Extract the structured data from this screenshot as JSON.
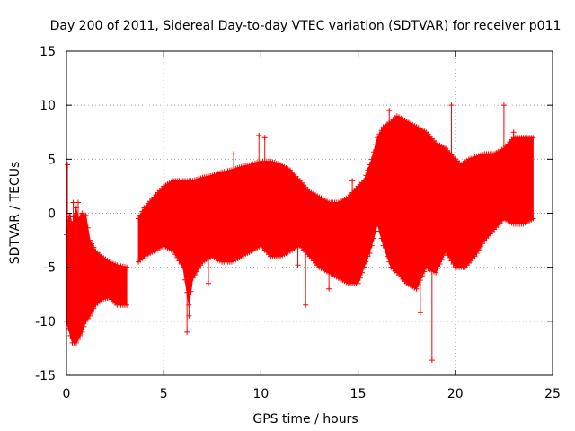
{
  "chart_data": {
    "type": "scatter",
    "title": "Day 200 of 2011, Sidereal Day-to-day VTEC variation (SDTVAR) for receiver p011",
    "xlabel": "GPS time / hours",
    "ylabel": "SDTVAR / TECUs",
    "xlim": [
      0,
      25
    ],
    "ylim": [
      -15,
      15
    ],
    "xticks": [
      "0",
      "5",
      "10",
      "15",
      "20",
      "25"
    ],
    "yticks": [
      "-15",
      "-10",
      "-5",
      "0",
      "5",
      "10",
      "15"
    ],
    "grid": true,
    "marker": "+",
    "color": "#ff0000",
    "series": [
      {
        "name": "SDTVAR",
        "band_upper": [
          [
            0.0,
            -2.0
          ],
          [
            0.15,
            0.0
          ],
          [
            0.3,
            -1.0
          ],
          [
            0.5,
            0.5
          ],
          [
            0.6,
            -0.5
          ],
          [
            0.8,
            0.0
          ],
          [
            1.0,
            -0.2
          ],
          [
            1.2,
            -2.5
          ],
          [
            1.5,
            -3.5
          ],
          [
            1.8,
            -4.0
          ],
          [
            2.2,
            -4.5
          ],
          [
            2.6,
            -4.8
          ],
          [
            3.1,
            -5.0
          ],
          [
            3.7,
            -0.5
          ],
          [
            4.0,
            0.5
          ],
          [
            4.5,
            1.5
          ],
          [
            5.0,
            2.5
          ],
          [
            5.5,
            3.0
          ],
          [
            6.0,
            3.0
          ],
          [
            6.5,
            3.0
          ],
          [
            7.0,
            3.3
          ],
          [
            7.5,
            3.5
          ],
          [
            8.0,
            3.8
          ],
          [
            8.5,
            4.0
          ],
          [
            9.0,
            4.3
          ],
          [
            9.5,
            4.5
          ],
          [
            10.0,
            4.8
          ],
          [
            10.5,
            4.8
          ],
          [
            11.0,
            4.5
          ],
          [
            11.5,
            4.0
          ],
          [
            12.0,
            3.0
          ],
          [
            12.5,
            2.0
          ],
          [
            13.0,
            1.5
          ],
          [
            13.5,
            1.0
          ],
          [
            14.0,
            1.0
          ],
          [
            14.5,
            1.5
          ],
          [
            15.0,
            2.5
          ],
          [
            15.3,
            3.0
          ],
          [
            15.7,
            5.0
          ],
          [
            16.0,
            7.0
          ],
          [
            16.3,
            8.0
          ],
          [
            16.7,
            8.5
          ],
          [
            17.0,
            9.0
          ],
          [
            17.5,
            8.5
          ],
          [
            18.0,
            8.0
          ],
          [
            18.5,
            7.5
          ],
          [
            19.0,
            6.5
          ],
          [
            19.5,
            6.0
          ],
          [
            20.0,
            5.0
          ],
          [
            20.3,
            4.5
          ],
          [
            20.7,
            5.0
          ],
          [
            21.0,
            5.2
          ],
          [
            21.5,
            5.5
          ],
          [
            22.0,
            5.5
          ],
          [
            22.5,
            6.0
          ],
          [
            23.0,
            7.0
          ],
          [
            23.5,
            7.0
          ],
          [
            24.0,
            7.0
          ]
        ],
        "band_lower": [
          [
            0.0,
            -10.0
          ],
          [
            0.3,
            -12.0
          ],
          [
            0.5,
            -12.0
          ],
          [
            0.8,
            -11.0
          ],
          [
            1.0,
            -10.0
          ],
          [
            1.2,
            -9.5
          ],
          [
            1.5,
            -8.5
          ],
          [
            1.8,
            -8.0
          ],
          [
            2.2,
            -7.8
          ],
          [
            2.6,
            -8.5
          ],
          [
            3.1,
            -8.5
          ],
          [
            3.7,
            -4.5
          ],
          [
            4.0,
            -4.0
          ],
          [
            4.5,
            -3.5
          ],
          [
            5.0,
            -3.0
          ],
          [
            5.5,
            -3.5
          ],
          [
            6.0,
            -5.0
          ],
          [
            6.3,
            -8.5
          ],
          [
            6.5,
            -6.0
          ],
          [
            7.0,
            -4.5
          ],
          [
            7.5,
            -4.0
          ],
          [
            8.0,
            -4.5
          ],
          [
            8.5,
            -4.5
          ],
          [
            9.0,
            -4.0
          ],
          [
            9.5,
            -3.5
          ],
          [
            10.0,
            -3.0
          ],
          [
            10.5,
            -4.0
          ],
          [
            11.0,
            -4.0
          ],
          [
            11.5,
            -3.5
          ],
          [
            12.0,
            -3.0
          ],
          [
            12.5,
            -4.0
          ],
          [
            13.0,
            -5.0
          ],
          [
            13.5,
            -5.5
          ],
          [
            14.0,
            -6.0
          ],
          [
            14.5,
            -6.5
          ],
          [
            15.0,
            -6.5
          ],
          [
            15.3,
            -5.0
          ],
          [
            15.7,
            -3.0
          ],
          [
            16.0,
            -1.0
          ],
          [
            16.3,
            -3.0
          ],
          [
            16.7,
            -5.0
          ],
          [
            17.0,
            -5.5
          ],
          [
            17.5,
            -6.5
          ],
          [
            18.0,
            -7.0
          ],
          [
            18.5,
            -5.0
          ],
          [
            19.0,
            -5.5
          ],
          [
            19.5,
            -3.5
          ],
          [
            20.0,
            -5.0
          ],
          [
            20.5,
            -5.0
          ],
          [
            21.0,
            -4.0
          ],
          [
            21.5,
            -2.5
          ],
          [
            22.0,
            -1.5
          ],
          [
            22.5,
            -0.5
          ],
          [
            23.0,
            -1.0
          ],
          [
            23.5,
            -1.0
          ],
          [
            24.0,
            -0.5
          ]
        ],
        "outliers": [
          [
            0.05,
            4.5
          ],
          [
            0.35,
            1.0
          ],
          [
            0.6,
            1.0
          ],
          [
            6.2,
            -11.0
          ],
          [
            6.3,
            -9.5
          ],
          [
            7.3,
            -6.5
          ],
          [
            8.6,
            5.5
          ],
          [
            9.9,
            7.2
          ],
          [
            10.2,
            7.0
          ],
          [
            11.9,
            -4.8
          ],
          [
            12.3,
            -8.5
          ],
          [
            13.5,
            -7.0
          ],
          [
            14.0,
            -6.0
          ],
          [
            14.7,
            3.0
          ],
          [
            15.6,
            -3.7
          ],
          [
            16.6,
            9.5
          ],
          [
            18.2,
            -9.2
          ],
          [
            18.8,
            -13.6
          ],
          [
            19.8,
            10.0
          ],
          [
            22.5,
            10.0
          ],
          [
            23.0,
            7.5
          ]
        ]
      }
    ]
  }
}
